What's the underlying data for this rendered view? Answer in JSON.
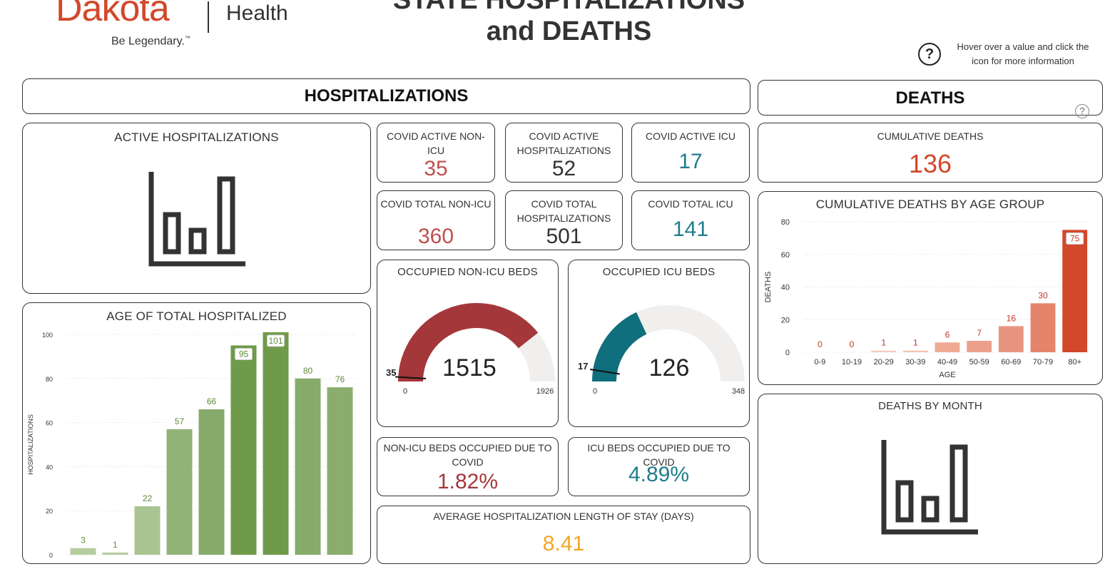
{
  "brand": {
    "name_part": "Dakota",
    "health": "Health",
    "tagline": "Be Legendary.",
    "tm": "™"
  },
  "title": {
    "line1": "STATE HOSPITALIZATIONS",
    "line2": "and DEATHS"
  },
  "help": {
    "text": "Hover over a value and click the icon for more information",
    "icon": "question-circle-icon"
  },
  "colors": {
    "red": "#c0504d",
    "dark_red": "#a4373a",
    "teal": "#1f7c8c",
    "dark": "#333333",
    "orange": "#f5a623",
    "death_red": "#d2482a"
  },
  "hospitalizations": {
    "header": "HOSPITALIZATIONS",
    "active": {
      "title": "ACTIVE HOSPITALIZATIONS",
      "icon": "bar-chart-icon"
    },
    "kpis": [
      {
        "label": "COVID ACTIVE NON-ICU",
        "value": "35"
      },
      {
        "label": "COVID ACTIVE HOSPITALIZATIONS",
        "value": "52"
      },
      {
        "label": "COVID ACTIVE ICU",
        "value": "17"
      },
      {
        "label": "COVID TOTAL NON-ICU",
        "value": "360"
      },
      {
        "label": "COVID TOTAL HOSPITALIZATIONS",
        "value": "501"
      },
      {
        "label": "COVID TOTAL ICU",
        "value": "141"
      }
    ],
    "gauge_non_icu": {
      "title": "OCCUPIED NON-ICU BEDS",
      "value": 1515,
      "value_label": "1515",
      "min": 0,
      "min_label": "0",
      "max": 1926,
      "max_label": "1926",
      "target": 35,
      "target_label": "35"
    },
    "gauge_icu": {
      "title": "OCCUPIED ICU BEDS",
      "value": 126,
      "value_label": "126",
      "min": 0,
      "min_label": "0",
      "max": 348,
      "max_label": "348",
      "target": 17,
      "target_label": "17"
    },
    "pct_non_icu": {
      "label": "NON-ICU BEDS OCCUPIED DUE TO COVID",
      "value": "1.82%"
    },
    "pct_icu": {
      "label": "ICU BEDS OCCUPIED DUE TO COVID",
      "value": "4.89%"
    },
    "los": {
      "label": "AVERAGE HOSPITALIZATION LENGTH OF STAY (DAYS)",
      "value": "8.41"
    }
  },
  "deaths": {
    "header": "DEATHS",
    "cumulative": {
      "label": "CUMULATIVE DEATHS",
      "value": "136"
    },
    "by_month": {
      "title": "DEATHS BY MONTH",
      "icon": "bar-chart-icon"
    }
  },
  "chart_data": [
    {
      "id": "age-hosp",
      "type": "bar",
      "title": "AGE OF TOTAL HOSPITALIZED",
      "xlabel": "",
      "ylabel": "HOSPITALIZATIONS",
      "ylim": [
        0,
        100
      ],
      "yticks": [
        0,
        20,
        40,
        60,
        80,
        100
      ],
      "grid": true,
      "legend": "none",
      "categories": [
        "",
        "",
        "",
        "",
        "",
        "",
        "",
        "",
        ""
      ],
      "values": [
        3,
        1,
        22,
        57,
        66,
        95,
        101,
        80,
        76
      ],
      "colors": [
        "#b5cc9f",
        "#b5cc9f",
        "#a9c492",
        "#92b378",
        "#86ab6b",
        "#6f9a4a",
        "#6f9a4a",
        "#86ab6b",
        "#8aad6e"
      ],
      "label_color": "#5f8a3a",
      "boxed": [
        false,
        false,
        false,
        false,
        false,
        true,
        true,
        false,
        false
      ]
    },
    {
      "id": "deaths-age",
      "type": "bar",
      "title": "CUMULATIVE DEATHS BY AGE GROUP",
      "xlabel": "AGE",
      "ylabel": "DEATHS",
      "ylim": [
        0,
        80
      ],
      "yticks": [
        0,
        20,
        40,
        60,
        80
      ],
      "grid": true,
      "legend": "none",
      "categories": [
        "0-9",
        "10-19",
        "20-29",
        "30-39",
        "40-49",
        "50-59",
        "60-69",
        "70-79",
        "80+"
      ],
      "values": [
        0,
        0,
        1,
        1,
        6,
        7,
        16,
        30,
        75
      ],
      "colors": [
        "#f7d5cc",
        "#f7d5cc",
        "#f5cbbf",
        "#f3c2b5",
        "#efaa96",
        "#eca08b",
        "#e89580",
        "#e4846b",
        "#d2482a"
      ],
      "label_color": "#c0392b",
      "boxed": [
        false,
        false,
        false,
        false,
        false,
        false,
        false,
        false,
        true
      ]
    }
  ]
}
